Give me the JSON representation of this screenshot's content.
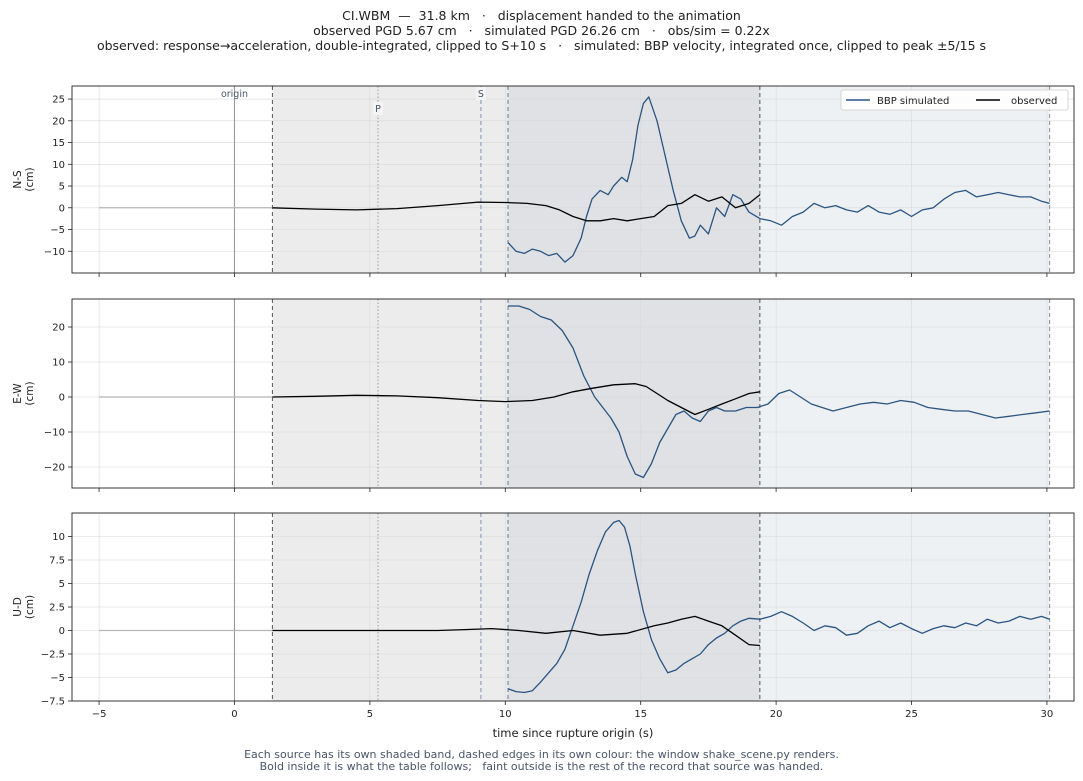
{
  "header": {
    "line1": "CI.WBM  —  31.8 km   ·   displacement handed to the animation",
    "line2": "observed PGD 5.67 cm   ·   simulated PGD 26.26 cm   ·   obs/sim = 0.22x",
    "line3": "observed: response→acceleration, double-integrated, clipped to S+10 s   ·   simulated: BBP velocity, integrated once, clipped to peak ±5/15 s"
  },
  "footer": {
    "line1": "Each source has its own shaded band, dashed edges in its own colour: the window shake_scene.py renders.",
    "line2": "Bold inside it is what the table follows;   faint outside is the rest of the record that source was handed."
  },
  "colors": {
    "simulated": "#2c5480",
    "observed": "#000000",
    "obs_band": "#ececec",
    "sim_band": "#eef1f4",
    "overlap_band": "#dfe1e5"
  },
  "chart_data": {
    "type": "line",
    "xlabel": "time since rupture origin (s)",
    "xlim": [
      -6,
      31
    ],
    "xticks": [
      -5,
      0,
      5,
      10,
      15,
      20,
      25,
      30
    ],
    "markers": {
      "origin": 0,
      "P": 5.3,
      "S": 9.1,
      "origin_label": "origin",
      "P_label": "P",
      "S_label": "S"
    },
    "windows": {
      "observed": [
        1.4,
        19.4
      ],
      "simulated": [
        10.1,
        30.1
      ]
    },
    "legend": {
      "placement": "top-right",
      "entries": [
        "BBP simulated",
        "observed"
      ]
    },
    "panels": [
      {
        "ylabel": "N-S",
        "yunit": "(cm)",
        "ylim": [
          -15,
          28
        ],
        "yticks": [
          -10,
          -5,
          0,
          5,
          10,
          15,
          20,
          25
        ],
        "simulated": {
          "name": "BBP simulated",
          "x": [
            10.1,
            10.4,
            10.7,
            11.0,
            11.3,
            11.6,
            11.9,
            12.2,
            12.5,
            12.8,
            13.0,
            13.2,
            13.5,
            13.8,
            14.0,
            14.3,
            14.5,
            14.7,
            14.9,
            15.1,
            15.3,
            15.6,
            15.9,
            16.2,
            16.5,
            16.8,
            17.0,
            17.2,
            17.5,
            17.8,
            18.1,
            18.4,
            18.7,
            19.0,
            19.4,
            19.8,
            20.2,
            20.6,
            21.0,
            21.4,
            21.8,
            22.2,
            22.6,
            23.0,
            23.4,
            23.8,
            24.2,
            24.6,
            25.0,
            25.4,
            25.8,
            26.2,
            26.6,
            27.0,
            27.4,
            27.8,
            28.2,
            28.6,
            29.0,
            29.4,
            29.8,
            30.1
          ],
          "y": [
            -8,
            -10,
            -10.5,
            -9.5,
            -10,
            -11,
            -10.5,
            -12.5,
            -11,
            -7,
            -2,
            2,
            4,
            3,
            5,
            7,
            6,
            11,
            19,
            24,
            25.5,
            20,
            12,
            4,
            -3,
            -7,
            -6.5,
            -4,
            -6,
            0,
            -2,
            3,
            2,
            -1,
            -2.5,
            -3,
            -4,
            -2,
            -1,
            1,
            0,
            0.5,
            -0.5,
            -1,
            0.5,
            -1,
            -1.5,
            -0.5,
            -2,
            -0.5,
            0,
            2,
            3.5,
            4,
            2.5,
            3,
            3.5,
            3,
            2.5,
            2.5,
            1.5,
            1
          ]
        },
        "observed": {
          "name": "observed",
          "x": [
            1.4,
            3.0,
            4.5,
            6.0,
            7.5,
            9.0,
            10.0,
            10.8,
            11.5,
            12.0,
            12.5,
            13.0,
            13.5,
            14.0,
            14.5,
            15.0,
            15.5,
            16.0,
            16.5,
            17.0,
            17.5,
            18.0,
            18.5,
            19.0,
            19.4
          ],
          "y": [
            0,
            -0.3,
            -0.5,
            -0.2,
            0.5,
            1.3,
            1.2,
            1,
            0.5,
            -0.5,
            -2,
            -3,
            -3,
            -2.5,
            -3,
            -2.5,
            -2,
            0.5,
            1,
            3,
            1.5,
            2.5,
            0,
            1,
            3
          ]
        }
      },
      {
        "ylabel": "E-W",
        "yunit": "(cm)",
        "ylim": [
          -26,
          28
        ],
        "yticks": [
          -20,
          -10,
          0,
          10,
          20
        ],
        "simulated": {
          "name": "BBP simulated",
          "x": [
            10.1,
            10.5,
            10.9,
            11.3,
            11.7,
            12.1,
            12.5,
            12.9,
            13.3,
            13.6,
            13.9,
            14.2,
            14.5,
            14.8,
            15.1,
            15.4,
            15.7,
            16.0,
            16.3,
            16.6,
            16.9,
            17.2,
            17.5,
            17.8,
            18.1,
            18.5,
            18.9,
            19.3,
            19.7,
            20.1,
            20.5,
            20.9,
            21.3,
            21.7,
            22.1,
            22.6,
            23.1,
            23.6,
            24.1,
            24.6,
            25.1,
            25.6,
            26.1,
            26.6,
            27.1,
            27.6,
            28.1,
            28.6,
            29.1,
            29.6,
            30.1
          ],
          "y": [
            26,
            26,
            25,
            23,
            22,
            19,
            14,
            6,
            0,
            -3,
            -6,
            -10,
            -17,
            -22,
            -23,
            -19,
            -13,
            -9,
            -5,
            -4,
            -6,
            -7,
            -4,
            -3,
            -4,
            -4,
            -3,
            -3,
            -2,
            1,
            2,
            0,
            -2,
            -3,
            -4,
            -3,
            -2,
            -1.5,
            -2,
            -1,
            -1.5,
            -3,
            -3.5,
            -4,
            -4,
            -5,
            -6,
            -5.5,
            -5,
            -4.5,
            -4
          ]
        },
        "observed": {
          "name": "observed",
          "x": [
            1.4,
            3.0,
            4.5,
            6.0,
            7.5,
            9.0,
            10.0,
            11.0,
            11.8,
            12.5,
            13.2,
            14.0,
            14.8,
            15.2,
            15.6,
            16.0,
            16.5,
            17.0,
            17.5,
            18.0,
            18.5,
            19.0,
            19.4
          ],
          "y": [
            0,
            0.2,
            0.5,
            0.3,
            -0.2,
            -1,
            -1.3,
            -1,
            0,
            1.5,
            2.5,
            3.5,
            3.8,
            3,
            1,
            -1,
            -3,
            -5,
            -3.5,
            -2,
            -0.5,
            1,
            1.5
          ]
        }
      },
      {
        "ylabel": "U-D",
        "yunit": "(cm)",
        "ylim": [
          -7.5,
          12.5
        ],
        "yticks": [
          -7.5,
          -5.0,
          -2.5,
          0.0,
          2.5,
          5.0,
          7.5,
          10.0
        ],
        "simulated": {
          "name": "BBP simulated",
          "x": [
            10.1,
            10.4,
            10.7,
            11.0,
            11.3,
            11.6,
            11.9,
            12.2,
            12.5,
            12.8,
            13.1,
            13.4,
            13.7,
            14.0,
            14.2,
            14.4,
            14.6,
            14.8,
            15.1,
            15.4,
            15.7,
            16.0,
            16.3,
            16.6,
            16.9,
            17.2,
            17.5,
            17.8,
            18.1,
            18.4,
            18.7,
            19.0,
            19.4,
            19.8,
            20.2,
            20.6,
            21.0,
            21.4,
            21.8,
            22.2,
            22.6,
            23.0,
            23.4,
            23.8,
            24.2,
            24.6,
            25.0,
            25.4,
            25.8,
            26.2,
            26.6,
            27.0,
            27.4,
            27.8,
            28.2,
            28.6,
            29.0,
            29.4,
            29.8,
            30.1
          ],
          "y": [
            -6.2,
            -6.5,
            -6.6,
            -6.4,
            -5.5,
            -4.5,
            -3.5,
            -2,
            0.5,
            3,
            6,
            8.5,
            10.5,
            11.5,
            11.7,
            11,
            9,
            6,
            2,
            -1,
            -3,
            -4.5,
            -4.2,
            -3.5,
            -3,
            -2.5,
            -1.5,
            -0.8,
            -0.3,
            0.5,
            1,
            1.3,
            1.2,
            1.5,
            2,
            1.5,
            0.8,
            0,
            0.5,
            0.3,
            -0.5,
            -0.3,
            0.5,
            1,
            0.3,
            0.8,
            0.2,
            -0.3,
            0.2,
            0.5,
            0.3,
            0.8,
            0.5,
            1.2,
            0.8,
            1,
            1.5,
            1.2,
            1.5,
            1.2
          ]
        },
        "observed": {
          "name": "observed",
          "x": [
            1.4,
            3.0,
            4.5,
            6.0,
            7.5,
            8.5,
            9.5,
            10.5,
            11.5,
            12.5,
            13.5,
            14.5,
            15.5,
            16.0,
            16.5,
            17.0,
            17.5,
            18.0,
            18.5,
            19.0,
            19.4
          ],
          "y": [
            0,
            0,
            0,
            0,
            0,
            0.1,
            0.2,
            0,
            -0.3,
            0,
            -0.5,
            -0.3,
            0.5,
            0.8,
            1.2,
            1.5,
            1,
            0.5,
            -0.5,
            -1.5,
            -1.6
          ]
        }
      }
    ]
  }
}
